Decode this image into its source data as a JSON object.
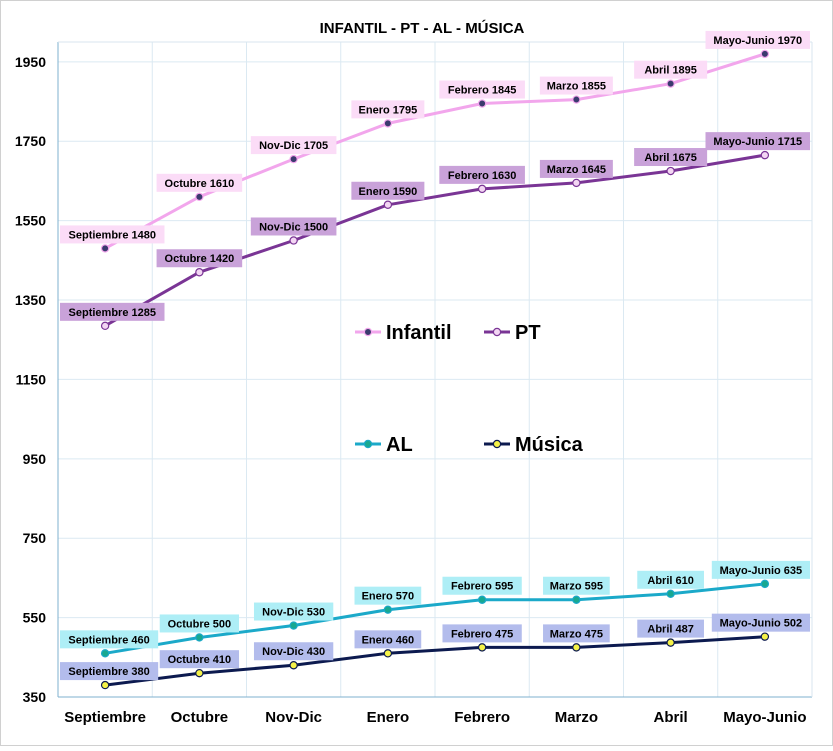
{
  "chart_data": {
    "type": "line",
    "title": "INFANTIL - PT - AL - MÚSICA",
    "categories": [
      "Septiembre",
      "Octubre",
      "Nov-Dic",
      "Enero",
      "Febrero",
      "Marzo",
      "Abril",
      "Mayo-Junio"
    ],
    "y_ticks": [
      "350",
      "550",
      "750",
      "950",
      "1150",
      "1350",
      "1550",
      "1750",
      "1950"
    ],
    "ylim": [
      350,
      2000
    ],
    "grid": true,
    "series": [
      {
        "name": "Infantil",
        "values": [
          1480,
          1610,
          1705,
          1795,
          1845,
          1855,
          1895,
          1970
        ],
        "labels": [
          "Septiembre 1480",
          "Octubre 1610",
          "Nov-Dic 1705",
          "Enero 1795",
          "Febrero 1845",
          "Marzo 1855",
          "Abril 1895",
          "Mayo-Junio 1970"
        ],
        "line_color": "#f2a6ec",
        "marker_fill": "#3b3a6e",
        "label_bg": "#fbdcf7"
      },
      {
        "name": "PT",
        "values": [
          1285,
          1420,
          1500,
          1590,
          1630,
          1645,
          1675,
          1715
        ],
        "labels": [
          "Septiembre 1285",
          "Octubre 1420",
          "Nov-Dic 1500",
          "Enero 1590",
          "Febrero 1630",
          "Marzo 1645",
          "Abril 1675",
          "Mayo-Junio 1715"
        ],
        "line_color": "#7a3595",
        "marker_fill": "#f3d6f3",
        "label_bg": "#c9a2d9"
      },
      {
        "name": "AL",
        "values": [
          460,
          500,
          530,
          570,
          595,
          595,
          610,
          635
        ],
        "labels": [
          "Septiembre 460",
          "Octubre 500",
          "Nov-Dic 530",
          "Enero 570",
          "Febrero 595",
          "Marzo 595",
          "Abril 610",
          "Mayo-Junio 635"
        ],
        "line_color": "#1ba9c9",
        "marker_fill": "#18a890",
        "label_bg": "#aeeef6"
      },
      {
        "name": "Música",
        "values": [
          380,
          410,
          430,
          460,
          475,
          475,
          487,
          502
        ],
        "labels": [
          "Septiembre 380",
          "Octubre 410",
          "Nov-Dic 430",
          "Enero 460",
          "Febrero 475",
          "Marzo 475",
          "Abril 487",
          "Mayo-Junio 502"
        ],
        "line_color": "#0c1a4f",
        "marker_fill": "#f5f248",
        "label_bg": "#b3bcec"
      }
    ]
  }
}
